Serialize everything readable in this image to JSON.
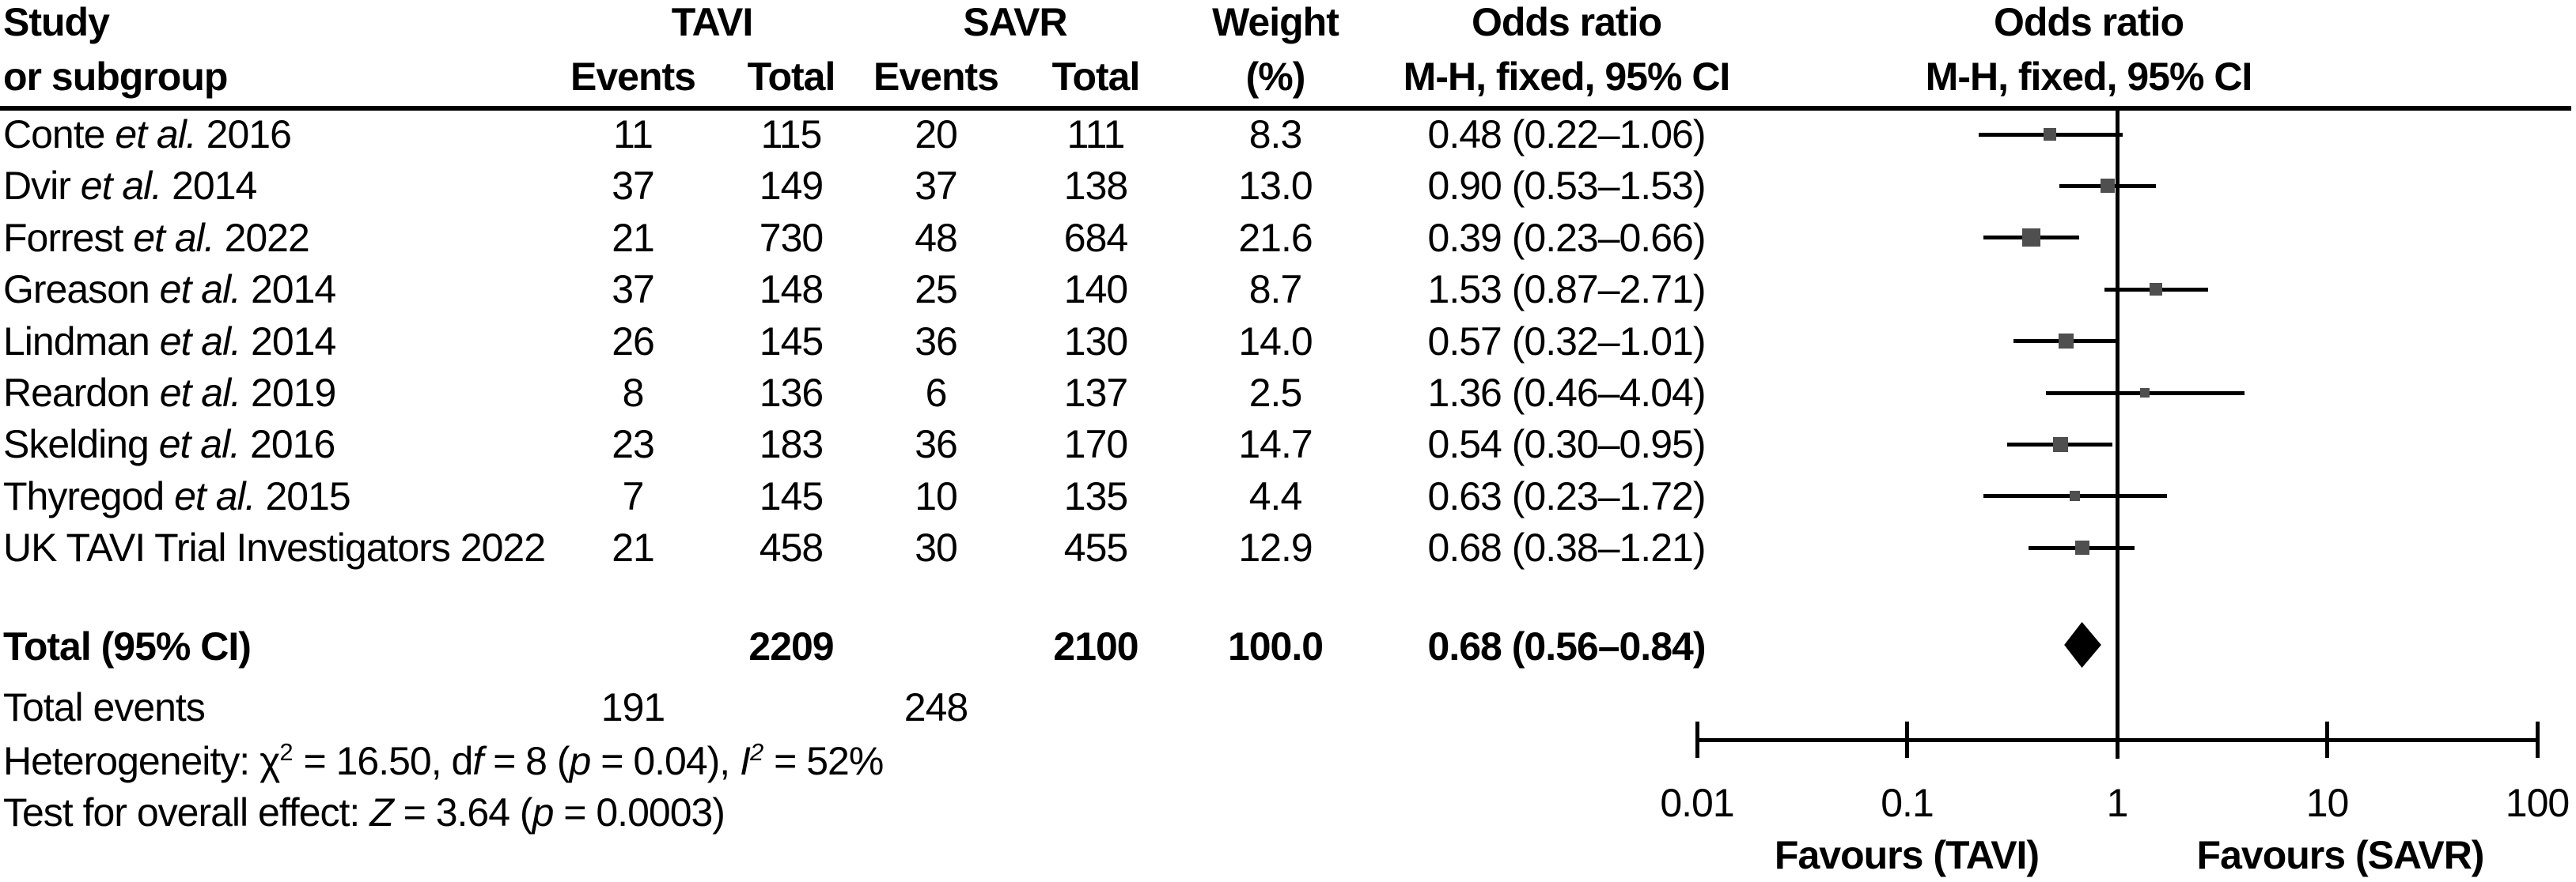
{
  "header": {
    "study_line1": "Study",
    "study_line2": "or subgroup",
    "tavi": "TAVI",
    "savr": "SAVR",
    "events": "Events",
    "total": "Total",
    "weight_line1": "Weight",
    "weight_line2": "(%)",
    "or_line1": "Odds ratio",
    "or_line2": "M-H, fixed, 95% CI",
    "plot_or_line1": "Odds ratio",
    "plot_or_line2": "M-H, fixed, 95% CI"
  },
  "chart_data": {
    "type": "forest",
    "x_scale": "log",
    "effect_measure": "Odds ratio (M-H, fixed, 95% CI)",
    "marker_color": "#4f4f4f",
    "diamond_color": "#000000",
    "axis": {
      "range": [
        0.01,
        100
      ],
      "ticks": [
        {
          "v": 0.01,
          "label": "0.01"
        },
        {
          "v": 0.1,
          "label": "0.1"
        },
        {
          "v": 1,
          "label": "1"
        },
        {
          "v": 10,
          "label": "10"
        },
        {
          "v": 100,
          "label": "100"
        }
      ]
    },
    "favours_left": "Favours (TAVI)",
    "favours_right": "Favours (SAVR)",
    "studies": [
      {
        "name": "Conte",
        "etal": true,
        "year": "2016",
        "tavi_events": "11",
        "tavi_total": "115",
        "savr_events": "20",
        "savr_total": "111",
        "weight": 8.3,
        "weight_text": "8.3",
        "or": 0.48,
        "ci_low": 0.22,
        "ci_high": 1.06,
        "or_text": "0.48 (0.22–1.06)"
      },
      {
        "name": "Dvir",
        "etal": true,
        "year": "2014",
        "tavi_events": "37",
        "tavi_total": "149",
        "savr_events": "37",
        "savr_total": "138",
        "weight": 13.0,
        "weight_text": "13.0",
        "or": 0.9,
        "ci_low": 0.53,
        "ci_high": 1.53,
        "or_text": "0.90 (0.53–1.53)"
      },
      {
        "name": "Forrest",
        "etal": true,
        "year": "2022",
        "tavi_events": "21",
        "tavi_total": "730",
        "savr_events": "48",
        "savr_total": "684",
        "weight": 21.6,
        "weight_text": "21.6",
        "or": 0.39,
        "ci_low": 0.23,
        "ci_high": 0.66,
        "or_text": "0.39 (0.23–0.66)"
      },
      {
        "name": "Greason",
        "etal": true,
        "year": "2014",
        "tavi_events": "37",
        "tavi_total": "148",
        "savr_events": "25",
        "savr_total": "140",
        "weight": 8.7,
        "weight_text": "8.7",
        "or": 1.53,
        "ci_low": 0.87,
        "ci_high": 2.71,
        "or_text": "1.53 (0.87–2.71)"
      },
      {
        "name": "Lindman",
        "etal": true,
        "year": "2014",
        "tavi_events": "26",
        "tavi_total": "145",
        "savr_events": "36",
        "savr_total": "130",
        "weight": 14.0,
        "weight_text": "14.0",
        "or": 0.57,
        "ci_low": 0.32,
        "ci_high": 1.01,
        "or_text": "0.57 (0.32–1.01)"
      },
      {
        "name": "Reardon",
        "etal": true,
        "year": "2019",
        "tavi_events": "8",
        "tavi_total": "136",
        "savr_events": "6",
        "savr_total": "137",
        "weight": 2.5,
        "weight_text": "2.5",
        "or": 1.36,
        "ci_low": 0.46,
        "ci_high": 4.04,
        "or_text": "1.36 (0.46–4.04)"
      },
      {
        "name": "Skelding",
        "etal": true,
        "year": "2016",
        "tavi_events": "23",
        "tavi_total": "183",
        "savr_events": "36",
        "savr_total": "170",
        "weight": 14.7,
        "weight_text": "14.7",
        "or": 0.54,
        "ci_low": 0.3,
        "ci_high": 0.95,
        "or_text": "0.54 (0.30–0.95)"
      },
      {
        "name": "Thyregod",
        "etal": true,
        "year": "2015",
        "tavi_events": "7",
        "tavi_total": "145",
        "savr_events": "10",
        "savr_total": "135",
        "weight": 4.4,
        "weight_text": "4.4",
        "or": 0.63,
        "ci_low": 0.23,
        "ci_high": 1.72,
        "or_text": "0.63 (0.23–1.72)"
      },
      {
        "name": "UK TAVI Trial Investigators",
        "etal": false,
        "year": "2022",
        "tavi_events": "21",
        "tavi_total": "458",
        "savr_events": "30",
        "savr_total": "455",
        "weight": 12.9,
        "weight_text": "12.9",
        "or": 0.68,
        "ci_low": 0.38,
        "ci_high": 1.21,
        "or_text": "0.68 (0.38–1.21)"
      }
    ],
    "total": {
      "or": 0.68,
      "ci_low": 0.56,
      "ci_high": 0.84
    }
  },
  "totals": {
    "label": "Total (95% CI)",
    "tavi_total": "2209",
    "savr_total": "2100",
    "weight_text": "100.0",
    "or_text": "0.68 (0.56–0.84)",
    "events_label": "Total events",
    "tavi_events": "191",
    "savr_events": "248"
  },
  "stats": {
    "heterogeneity_segments": [
      {
        "t": "Heterogeneity: χ"
      },
      {
        "t": "2",
        "sup": true
      },
      {
        "t": " = 16.50, d"
      },
      {
        "t": "f",
        "i": true
      },
      {
        "t": " = 8 ("
      },
      {
        "t": "p",
        "i": true
      },
      {
        "t": " = 0.04), "
      },
      {
        "t": "I",
        "i": true
      },
      {
        "t": "2",
        "sup": true,
        "i": true
      },
      {
        "t": " = 52%"
      }
    ],
    "heterogeneity_plain": "Heterogeneity: χ² = 16.50, df = 8 (p = 0.04), I² = 52%",
    "overall_effect_segments": [
      {
        "t": "Test for overall effect: "
      },
      {
        "t": "Z",
        "i": true
      },
      {
        "t": " = 3.64 ("
      },
      {
        "t": "p",
        "i": true
      },
      {
        "t": " = 0.0003)"
      }
    ],
    "overall_effect_plain": "Test for overall effect: Z = 3.64 (p = 0.0003)"
  }
}
